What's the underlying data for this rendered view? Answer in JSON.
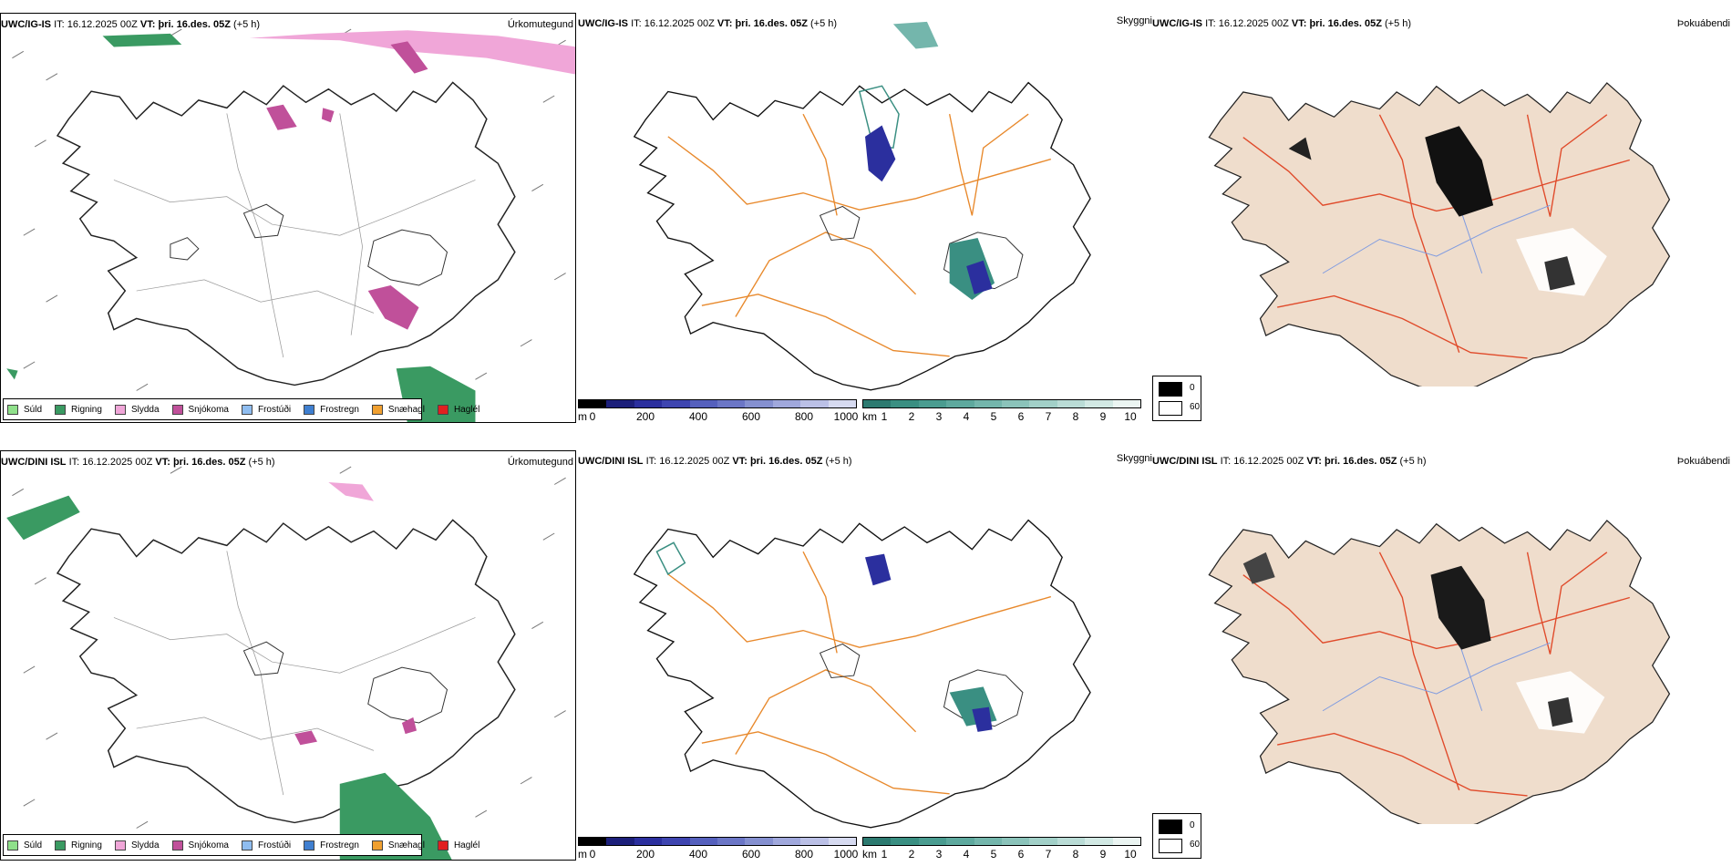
{
  "colors": {
    "coast": "#1a1a1a",
    "roads_orange": "#e8892c",
    "roads_red": "#e04a2a",
    "rivers": "#7f9be0",
    "land_tan": "#efddcc",
    "visibility_teal": "#3a8f82",
    "cloudbase_blue": "#2b2f9e",
    "precip_snow": "#c0509a",
    "precip_sleet": "#f0a6d8",
    "precip_rain": "#3a9a62"
  },
  "rows": [
    {
      "model": "UWC/IG-IS",
      "it_label": "IT:",
      "it_value": "16.12.2025 00Z",
      "vt_label": "VT:",
      "vt_value": "þri. 16.des. 05Z",
      "lead": "(+5 h)"
    },
    {
      "model": "UWC/DINI ISL",
      "it_label": "IT:",
      "it_value": "16.12.2025 00Z",
      "vt_label": "VT:",
      "vt_value": "þri. 16.des. 05Z",
      "lead": "(+5 h)"
    }
  ],
  "panel_titles": {
    "precip_type": "Úrkomutegund",
    "visibility": "Skyggni",
    "fog": "Þokuábendi"
  },
  "precip_legend": [
    {
      "label": "Súld",
      "color": "#8fe08a",
      "icon": "square-swatch"
    },
    {
      "label": "Rigning",
      "color": "#3a9a62",
      "icon": "square-swatch"
    },
    {
      "label": "Slydda",
      "color": "#f0a6d8",
      "icon": "square-swatch"
    },
    {
      "label": "Snjókoma",
      "color": "#c0509a",
      "icon": "square-swatch"
    },
    {
      "label": "Frostúði",
      "color": "#8fbdf0",
      "icon": "square-swatch"
    },
    {
      "label": "Frostregn",
      "color": "#3f7fd0",
      "icon": "square-swatch"
    },
    {
      "label": "Snæhagl",
      "color": "#f0a030",
      "icon": "square-swatch"
    },
    {
      "label": "Haglél",
      "color": "#e02020",
      "icon": "square-swatch"
    }
  ],
  "cloudbase_bar": {
    "unit": "m",
    "ticks": [
      "0",
      "200",
      "400",
      "600",
      "800",
      "1000"
    ],
    "colors": [
      "#000000",
      "#1c1f7a",
      "#2b2f9e",
      "#3e45b0",
      "#5560bd",
      "#6b76c6",
      "#8590d0",
      "#a0a8dc",
      "#bbc0e6",
      "#d6daf0"
    ]
  },
  "visibility_bar": {
    "unit": "km",
    "ticks": [
      "1",
      "2",
      "3",
      "4",
      "5",
      "6",
      "7",
      "8",
      "9",
      "10"
    ],
    "colors": [
      "#2c7a70",
      "#3a8f82",
      "#4a9c90",
      "#5ea99e",
      "#74b6ac",
      "#8bc3ba",
      "#a2d0c8",
      "#badcd6",
      "#d2e9e4",
      "#ebf5f2"
    ]
  },
  "fog_legend": [
    {
      "label": "0",
      "color": "#000000"
    },
    {
      "label": "60",
      "color": "#ffffff"
    }
  ]
}
